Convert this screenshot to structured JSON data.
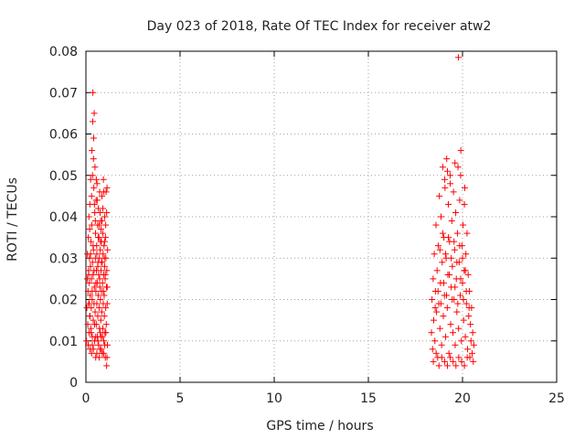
{
  "chart_data": {
    "type": "scatter",
    "title": "Day 023 of 2018, Rate Of TEC Index for receiver atw2",
    "xlabel": "GPS time / hours",
    "ylabel": "ROTI / TECUs",
    "xlim": [
      0,
      25
    ],
    "ylim": [
      0,
      0.08
    ],
    "xticks": [
      0,
      5,
      10,
      15,
      20,
      25
    ],
    "yticks": [
      0,
      0.01,
      0.02,
      0.03,
      0.04,
      0.05,
      0.06,
      0.07,
      0.08
    ],
    "xtick_labels": [
      "0",
      "5",
      "10",
      "15",
      "20",
      "25"
    ],
    "ytick_labels": [
      "0",
      "0.01",
      "0.02",
      "0.03",
      "0.04",
      "0.05",
      "0.06",
      "0.07",
      "0.08"
    ],
    "grid": true,
    "marker": "+",
    "color": "#ff0000",
    "series": [
      {
        "points": [
          [
            0.03,
            0.01
          ],
          [
            0.05,
            0.018
          ],
          [
            0.07,
            0.025
          ],
          [
            0.08,
            0.031
          ],
          [
            0.1,
            0.014
          ],
          [
            0.11,
            0.022
          ],
          [
            0.12,
            0.009
          ],
          [
            0.13,
            0.035
          ],
          [
            0.14,
            0.027
          ],
          [
            0.15,
            0.019
          ],
          [
            0.16,
            0.04
          ],
          [
            0.17,
            0.012
          ],
          [
            0.18,
            0.024
          ],
          [
            0.19,
            0.03
          ],
          [
            0.2,
            0.016
          ],
          [
            0.21,
            0.043
          ],
          [
            0.22,
            0.008
          ],
          [
            0.23,
            0.021
          ],
          [
            0.24,
            0.028
          ],
          [
            0.25,
            0.049
          ],
          [
            0.26,
            0.013
          ],
          [
            0.27,
            0.034
          ],
          [
            0.28,
            0.018
          ],
          [
            0.29,
            0.025
          ],
          [
            0.3,
            0.007
          ],
          [
            0.31,
            0.038
          ],
          [
            0.32,
            0.056
          ],
          [
            0.33,
            0.02
          ],
          [
            0.34,
            0.011
          ],
          [
            0.35,
            0.029
          ],
          [
            0.36,
            0.063
          ],
          [
            0.37,
            0.07
          ],
          [
            0.38,
            0.026
          ],
          [
            0.39,
            0.015
          ],
          [
            0.4,
            0.032
          ],
          [
            0.41,
            0.059
          ],
          [
            0.42,
            0.047
          ],
          [
            0.43,
            0.019
          ],
          [
            0.44,
            0.065
          ],
          [
            0.45,
            0.023
          ],
          [
            0.46,
            0.01
          ],
          [
            0.47,
            0.041
          ],
          [
            0.48,
            0.052
          ],
          [
            0.49,
            0.017
          ],
          [
            0.5,
            0.03
          ],
          [
            0.51,
            0.036
          ],
          [
            0.52,
            0.006
          ],
          [
            0.53,
            0.022
          ],
          [
            0.54,
            0.044
          ],
          [
            0.55,
            0.014
          ],
          [
            0.56,
            0.027
          ],
          [
            0.57,
            0.033
          ],
          [
            0.58,
            0.019
          ],
          [
            0.59,
            0.048
          ],
          [
            0.6,
            0.024
          ],
          [
            0.61,
            0.011
          ],
          [
            0.62,
            0.038
          ],
          [
            0.63,
            0.016
          ],
          [
            0.64,
            0.029
          ],
          [
            0.65,
            0.021
          ],
          [
            0.66,
            0.042
          ],
          [
            0.67,
            0.009
          ],
          [
            0.68,
            0.026
          ],
          [
            0.69,
            0.035
          ],
          [
            0.7,
            0.018
          ],
          [
            0.71,
            0.03
          ],
          [
            0.72,
            0.013
          ],
          [
            0.73,
            0.046
          ],
          [
            0.74,
            0.023
          ],
          [
            0.75,
            0.008
          ],
          [
            0.76,
            0.032
          ],
          [
            0.77,
            0.02
          ],
          [
            0.78,
            0.039
          ],
          [
            0.79,
            0.015
          ],
          [
            0.8,
            0.027
          ],
          [
            0.81,
            0.011
          ],
          [
            0.82,
            0.034
          ],
          [
            0.83,
            0.022
          ],
          [
            0.84,
            0.017
          ],
          [
            0.85,
            0.045
          ],
          [
            0.86,
            0.029
          ],
          [
            0.87,
            0.007
          ],
          [
            0.88,
            0.024
          ],
          [
            0.89,
            0.036
          ],
          [
            0.9,
            0.013
          ],
          [
            0.91,
            0.031
          ],
          [
            0.92,
            0.019
          ],
          [
            0.93,
            0.049
          ],
          [
            0.94,
            0.026
          ],
          [
            0.95,
            0.01
          ],
          [
            0.96,
            0.033
          ],
          [
            0.97,
            0.021
          ],
          [
            0.98,
            0.016
          ],
          [
            0.99,
            0.028
          ],
          [
            1.0,
            0.04
          ],
          [
            1.01,
            0.012
          ],
          [
            1.02,
            0.025
          ],
          [
            1.03,
            0.006
          ],
          [
            1.04,
            0.035
          ],
          [
            1.05,
            0.018
          ],
          [
            1.06,
            0.03
          ],
          [
            1.07,
            0.046
          ],
          [
            1.08,
            0.014
          ],
          [
            1.09,
            0.023
          ],
          [
            1.1,
            0.004
          ],
          [
            1.11,
            0.027
          ],
          [
            1.12,
            0.047
          ],
          [
            1.13,
            0.019
          ],
          [
            1.14,
            0.009
          ],
          [
            1.15,
            0.032
          ],
          [
            0.2,
            0.037
          ],
          [
            0.25,
            0.031
          ],
          [
            0.3,
            0.045
          ],
          [
            0.35,
            0.05
          ],
          [
            0.4,
            0.054
          ],
          [
            0.45,
            0.043
          ],
          [
            0.5,
            0.039
          ],
          [
            0.55,
            0.049
          ],
          [
            0.6,
            0.044
          ],
          [
            0.65,
            0.035
          ],
          [
            0.7,
            0.038
          ],
          [
            0.75,
            0.041
          ],
          [
            0.8,
            0.037
          ],
          [
            0.85,
            0.039
          ],
          [
            0.9,
            0.042
          ],
          [
            0.95,
            0.046
          ],
          [
            1.0,
            0.034
          ],
          [
            1.05,
            0.038
          ],
          [
            1.1,
            0.041
          ],
          [
            0.15,
            0.026
          ],
          [
            0.22,
            0.016
          ],
          [
            0.28,
            0.012
          ],
          [
            0.34,
            0.009
          ],
          [
            0.4,
            0.008
          ],
          [
            0.46,
            0.014
          ],
          [
            0.52,
            0.011
          ],
          [
            0.58,
            0.007
          ],
          [
            0.64,
            0.01
          ],
          [
            0.7,
            0.006
          ],
          [
            0.76,
            0.012
          ],
          [
            0.82,
            0.008
          ],
          [
            0.88,
            0.011
          ],
          [
            0.94,
            0.007
          ],
          [
            1.0,
            0.009
          ],
          [
            1.06,
            0.012
          ],
          [
            1.12,
            0.006
          ],
          [
            0.33,
            0.022
          ],
          [
            0.43,
            0.027
          ],
          [
            0.53,
            0.024
          ],
          [
            0.63,
            0.028
          ],
          [
            0.73,
            0.025
          ],
          [
            0.83,
            0.029
          ],
          [
            0.93,
            0.022
          ],
          [
            1.03,
            0.026
          ],
          [
            1.13,
            0.023
          ],
          [
            0.18,
            0.019
          ],
          [
            0.38,
            0.033
          ],
          [
            0.58,
            0.031
          ],
          [
            0.78,
            0.034
          ],
          [
            0.98,
            0.03
          ],
          [
            18.35,
            0.012
          ],
          [
            18.38,
            0.02
          ],
          [
            18.41,
            0.008
          ],
          [
            18.44,
            0.025
          ],
          [
            18.47,
            0.015
          ],
          [
            18.5,
            0.031
          ],
          [
            18.53,
            0.01
          ],
          [
            18.56,
            0.022
          ],
          [
            18.59,
            0.038
          ],
          [
            18.62,
            0.017
          ],
          [
            18.65,
            0.027
          ],
          [
            18.68,
            0.006
          ],
          [
            18.71,
            0.033
          ],
          [
            18.74,
            0.019
          ],
          [
            18.77,
            0.045
          ],
          [
            18.8,
            0.013
          ],
          [
            18.83,
            0.024
          ],
          [
            18.86,
            0.04
          ],
          [
            18.89,
            0.009
          ],
          [
            18.92,
            0.029
          ],
          [
            18.95,
            0.052
          ],
          [
            18.98,
            0.016
          ],
          [
            19.01,
            0.035
          ],
          [
            19.04,
            0.021
          ],
          [
            19.07,
            0.047
          ],
          [
            19.1,
            0.011
          ],
          [
            19.13,
            0.03
          ],
          [
            19.16,
            0.054
          ],
          [
            19.19,
            0.018
          ],
          [
            19.22,
            0.026
          ],
          [
            19.25,
            0.043
          ],
          [
            19.28,
            0.007
          ],
          [
            19.31,
            0.034
          ],
          [
            19.34,
            0.05
          ],
          [
            19.37,
            0.014
          ],
          [
            19.4,
            0.023
          ],
          [
            19.43,
            0.039
          ],
          [
            19.46,
            0.028
          ],
          [
            19.49,
            0.012
          ],
          [
            19.52,
            0.046
          ],
          [
            19.55,
            0.02
          ],
          [
            19.58,
            0.032
          ],
          [
            19.61,
            0.009
          ],
          [
            19.64,
            0.041
          ],
          [
            19.67,
            0.025
          ],
          [
            19.7,
            0.017
          ],
          [
            19.73,
            0.036
          ],
          [
            19.76,
            0.052
          ],
          [
            19.79,
            0.013
          ],
          [
            19.82,
            0.029
          ],
          [
            19.85,
            0.044
          ],
          [
            19.88,
            0.021
          ],
          [
            19.91,
            0.056
          ],
          [
            19.94,
            0.01
          ],
          [
            19.97,
            0.033
          ],
          [
            20.0,
            0.024
          ],
          [
            20.03,
            0.038
          ],
          [
            20.06,
            0.015
          ],
          [
            20.09,
            0.027
          ],
          [
            20.12,
            0.047
          ],
          [
            20.15,
            0.011
          ],
          [
            20.18,
            0.031
          ],
          [
            20.21,
            0.019
          ],
          [
            20.24,
            0.036
          ],
          [
            20.27,
            0.008
          ],
          [
            20.3,
            0.026
          ],
          [
            20.33,
            0.016
          ],
          [
            20.36,
            0.022
          ],
          [
            20.39,
            0.006
          ],
          [
            20.42,
            0.014
          ],
          [
            20.45,
            0.01
          ],
          [
            20.48,
            0.018
          ],
          [
            20.51,
            0.007
          ],
          [
            20.54,
            0.012
          ],
          [
            20.57,
            0.005
          ],
          [
            20.6,
            0.009
          ],
          [
            18.45,
            0.005
          ],
          [
            18.6,
            0.007
          ],
          [
            18.75,
            0.004
          ],
          [
            18.9,
            0.006
          ],
          [
            19.05,
            0.005
          ],
          [
            19.2,
            0.004
          ],
          [
            19.35,
            0.006
          ],
          [
            19.5,
            0.005
          ],
          [
            19.65,
            0.004
          ],
          [
            19.8,
            0.006
          ],
          [
            19.95,
            0.005
          ],
          [
            20.1,
            0.004
          ],
          [
            20.25,
            0.006
          ],
          [
            18.55,
            0.018
          ],
          [
            18.7,
            0.022
          ],
          [
            18.85,
            0.019
          ],
          [
            19.0,
            0.024
          ],
          [
            19.15,
            0.021
          ],
          [
            19.3,
            0.026
          ],
          [
            19.45,
            0.02
          ],
          [
            19.6,
            0.023
          ],
          [
            19.75,
            0.019
          ],
          [
            19.9,
            0.025
          ],
          [
            20.05,
            0.02
          ],
          [
            20.2,
            0.022
          ],
          [
            20.35,
            0.018
          ],
          [
            18.8,
            0.032
          ],
          [
            18.95,
            0.036
          ],
          [
            19.1,
            0.031
          ],
          [
            19.25,
            0.035
          ],
          [
            19.4,
            0.03
          ],
          [
            19.55,
            0.034
          ],
          [
            19.7,
            0.029
          ],
          [
            19.85,
            0.033
          ],
          [
            20.0,
            0.03
          ],
          [
            20.15,
            0.027
          ],
          [
            19.05,
            0.049
          ],
          [
            19.2,
            0.051
          ],
          [
            19.35,
            0.048
          ],
          [
            19.6,
            0.053
          ],
          [
            19.9,
            0.05
          ],
          [
            20.1,
            0.043
          ],
          [
            19.78,
            0.0785
          ]
        ]
      }
    ]
  }
}
